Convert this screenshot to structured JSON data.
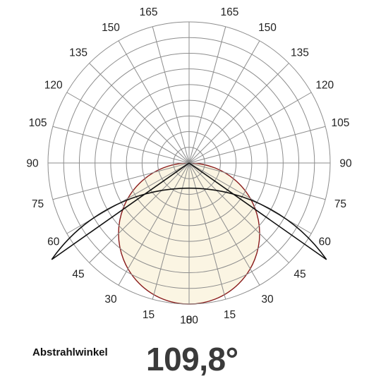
{
  "chart_data": {
    "type": "polar",
    "title": "",
    "angle_labels": [
      "0",
      "15",
      "30",
      "45",
      "60",
      "75",
      "90",
      "105",
      "120",
      "135",
      "150",
      "165",
      "180"
    ],
    "grid": true,
    "beam_shape": "circle",
    "beam_half_angle_deg": 54.9,
    "beam_angle_label": "Abstrahlwinkel",
    "beam_angle_value": "109,8°",
    "fill_color": "#fbf5e3",
    "outline_color": "#8a1c1c"
  }
}
